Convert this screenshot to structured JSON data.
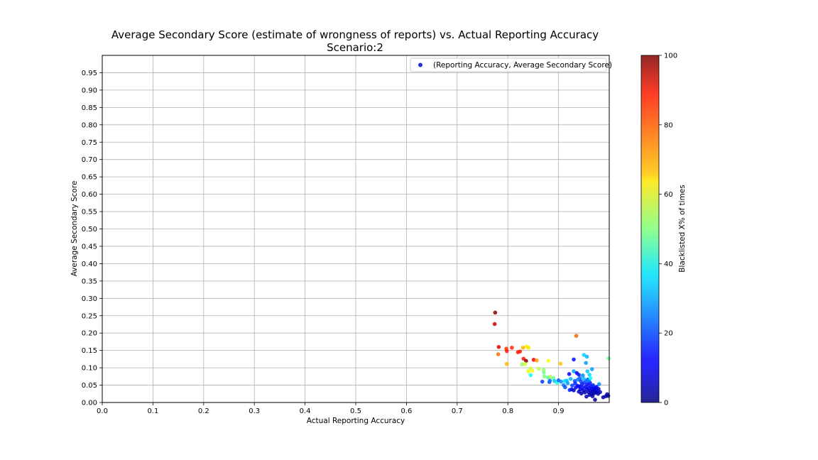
{
  "chart_data": {
    "type": "scatter",
    "title": "Average Secondary Score (estimate of wrongness of reports) vs. Actual Reporting Accuracy",
    "subtitle": "Scenario:2",
    "xlabel": "Actual Reporting Accuracy",
    "ylabel": "Average Secondary Score",
    "xlim": [
      0.0,
      1.0
    ],
    "ylim": [
      0.0,
      1.0
    ],
    "x_ticks": [
      "0.0",
      "0.1",
      "0.2",
      "0.3",
      "0.4",
      "0.5",
      "0.6",
      "0.7",
      "0.8",
      "0.9"
    ],
    "y_ticks": [
      "0.00",
      "0.05",
      "0.10",
      "0.15",
      "0.20",
      "0.25",
      "0.30",
      "0.35",
      "0.40",
      "0.45",
      "0.50",
      "0.55",
      "0.60",
      "0.65",
      "0.70",
      "0.75",
      "0.80",
      "0.85",
      "0.90",
      "0.95"
    ],
    "grid": true,
    "legend": {
      "entries": [
        "(Reporting Accuracy, Average Secondary Score)"
      ],
      "placement": "top-right"
    },
    "colorbar": {
      "label": "Blacklisted X% of times",
      "range": [
        0,
        100
      ],
      "ticks": [
        "0",
        "20",
        "40",
        "60",
        "80",
        "100"
      ],
      "colormap": "jet"
    },
    "points": [
      {
        "x": 0.775,
        "y": 0.259,
        "c": 100
      },
      {
        "x": 0.774,
        "y": 0.226,
        "c": 92
      },
      {
        "x": 0.782,
        "y": 0.16,
        "c": 90
      },
      {
        "x": 0.781,
        "y": 0.139,
        "c": 77
      },
      {
        "x": 0.797,
        "y": 0.155,
        "c": 82
      },
      {
        "x": 0.798,
        "y": 0.148,
        "c": 85
      },
      {
        "x": 0.808,
        "y": 0.158,
        "c": 84
      },
      {
        "x": 0.798,
        "y": 0.111,
        "c": 70
      },
      {
        "x": 0.82,
        "y": 0.145,
        "c": 86
      },
      {
        "x": 0.824,
        "y": 0.147,
        "c": 85
      },
      {
        "x": 0.83,
        "y": 0.158,
        "c": 70
      },
      {
        "x": 0.837,
        "y": 0.161,
        "c": 64
      },
      {
        "x": 0.841,
        "y": 0.158,
        "c": 65
      },
      {
        "x": 0.831,
        "y": 0.126,
        "c": 86
      },
      {
        "x": 0.836,
        "y": 0.12,
        "c": 100
      },
      {
        "x": 0.851,
        "y": 0.123,
        "c": 88
      },
      {
        "x": 0.857,
        "y": 0.121,
        "c": 72
      },
      {
        "x": 0.828,
        "y": 0.11,
        "c": 52
      },
      {
        "x": 0.834,
        "y": 0.111,
        "c": 58
      },
      {
        "x": 0.84,
        "y": 0.09,
        "c": 60
      },
      {
        "x": 0.845,
        "y": 0.098,
        "c": 58
      },
      {
        "x": 0.848,
        "y": 0.091,
        "c": 62
      },
      {
        "x": 0.845,
        "y": 0.079,
        "c": 38
      },
      {
        "x": 0.861,
        "y": 0.097,
        "c": 55
      },
      {
        "x": 0.871,
        "y": 0.094,
        "c": 52
      },
      {
        "x": 0.871,
        "y": 0.086,
        "c": 48
      },
      {
        "x": 0.88,
        "y": 0.12,
        "c": 62
      },
      {
        "x": 0.872,
        "y": 0.075,
        "c": 50
      },
      {
        "x": 0.879,
        "y": 0.072,
        "c": 45
      },
      {
        "x": 0.884,
        "y": 0.074,
        "c": 56
      },
      {
        "x": 0.89,
        "y": 0.07,
        "c": 46
      },
      {
        "x": 0.868,
        "y": 0.06,
        "c": 18
      },
      {
        "x": 0.882,
        "y": 0.059,
        "c": 20
      },
      {
        "x": 0.883,
        "y": 0.063,
        "c": 24
      },
      {
        "x": 0.892,
        "y": 0.062,
        "c": 32
      },
      {
        "x": 0.897,
        "y": 0.057,
        "c": 40
      },
      {
        "x": 0.9,
        "y": 0.064,
        "c": 22
      },
      {
        "x": 0.905,
        "y": 0.06,
        "c": 26
      },
      {
        "x": 0.904,
        "y": 0.112,
        "c": 68
      },
      {
        "x": 0.91,
        "y": 0.05,
        "c": 24
      },
      {
        "x": 0.913,
        "y": 0.044,
        "c": 20
      },
      {
        "x": 0.916,
        "y": 0.063,
        "c": 30
      },
      {
        "x": 0.921,
        "y": 0.082,
        "c": 12
      },
      {
        "x": 0.924,
        "y": 0.068,
        "c": 30
      },
      {
        "x": 0.93,
        "y": 0.124,
        "c": 14
      },
      {
        "x": 0.93,
        "y": 0.09,
        "c": 28
      },
      {
        "x": 0.935,
        "y": 0.192,
        "c": 78
      },
      {
        "x": 0.936,
        "y": 0.085,
        "c": 10
      },
      {
        "x": 0.94,
        "y": 0.08,
        "c": 14
      },
      {
        "x": 0.942,
        "y": 0.07,
        "c": 22
      },
      {
        "x": 0.95,
        "y": 0.137,
        "c": 33
      },
      {
        "x": 0.956,
        "y": 0.132,
        "c": 30
      },
      {
        "x": 0.954,
        "y": 0.114,
        "c": 28
      },
      {
        "x": 0.948,
        "y": 0.078,
        "c": 26
      },
      {
        "x": 0.957,
        "y": 0.09,
        "c": 32
      },
      {
        "x": 0.961,
        "y": 0.08,
        "c": 34
      },
      {
        "x": 0.966,
        "y": 0.096,
        "c": 28
      },
      {
        "x": 0.922,
        "y": 0.036,
        "c": 16
      },
      {
        "x": 0.926,
        "y": 0.038,
        "c": 12
      },
      {
        "x": 0.93,
        "y": 0.035,
        "c": 6
      },
      {
        "x": 0.934,
        "y": 0.043,
        "c": 10
      },
      {
        "x": 0.938,
        "y": 0.048,
        "c": 12
      },
      {
        "x": 0.94,
        "y": 0.031,
        "c": 8
      },
      {
        "x": 0.943,
        "y": 0.038,
        "c": 10
      },
      {
        "x": 0.945,
        "y": 0.026,
        "c": 4
      },
      {
        "x": 0.947,
        "y": 0.043,
        "c": 14
      },
      {
        "x": 0.949,
        "y": 0.035,
        "c": 6
      },
      {
        "x": 0.951,
        "y": 0.057,
        "c": 16
      },
      {
        "x": 0.952,
        "y": 0.029,
        "c": 4
      },
      {
        "x": 0.953,
        "y": 0.045,
        "c": 10
      },
      {
        "x": 0.955,
        "y": 0.017,
        "c": 5
      },
      {
        "x": 0.956,
        "y": 0.038,
        "c": 8
      },
      {
        "x": 0.957,
        "y": 0.052,
        "c": 12
      },
      {
        "x": 0.958,
        "y": 0.066,
        "c": 18
      },
      {
        "x": 0.959,
        "y": 0.03,
        "c": 6
      },
      {
        "x": 0.96,
        "y": 0.042,
        "c": 10
      },
      {
        "x": 0.961,
        "y": 0.022,
        "c": 4
      },
      {
        "x": 0.962,
        "y": 0.057,
        "c": 14
      },
      {
        "x": 0.963,
        "y": 0.034,
        "c": 6
      },
      {
        "x": 0.964,
        "y": 0.047,
        "c": 12
      },
      {
        "x": 0.965,
        "y": 0.025,
        "c": 4
      },
      {
        "x": 0.966,
        "y": 0.038,
        "c": 8
      },
      {
        "x": 0.967,
        "y": 0.018,
        "c": 3
      },
      {
        "x": 0.968,
        "y": 0.031,
        "c": 6
      },
      {
        "x": 0.969,
        "y": 0.043,
        "c": 10
      },
      {
        "x": 0.97,
        "y": 0.026,
        "c": 5
      },
      {
        "x": 0.971,
        "y": 0.036,
        "c": 8
      },
      {
        "x": 0.972,
        "y": 0.008,
        "c": 2
      },
      {
        "x": 0.973,
        "y": 0.041,
        "c": 10
      },
      {
        "x": 0.974,
        "y": 0.029,
        "c": 5
      },
      {
        "x": 0.976,
        "y": 0.034,
        "c": 7
      },
      {
        "x": 0.978,
        "y": 0.025,
        "c": 4
      },
      {
        "x": 0.979,
        "y": 0.039,
        "c": 8
      },
      {
        "x": 0.98,
        "y": 0.053,
        "c": 26
      },
      {
        "x": 0.982,
        "y": 0.03,
        "c": 6
      },
      {
        "x": 0.988,
        "y": 0.015,
        "c": 3
      },
      {
        "x": 0.993,
        "y": 0.018,
        "c": 4
      },
      {
        "x": 0.996,
        "y": 0.024,
        "c": 5
      },
      {
        "x": 0.998,
        "y": 0.019,
        "c": 3
      },
      {
        "x": 0.999,
        "y": 0.127,
        "c": 48
      },
      {
        "x": 0.932,
        "y": 0.062,
        "c": 20
      },
      {
        "x": 0.938,
        "y": 0.066,
        "c": 24
      },
      {
        "x": 0.944,
        "y": 0.061,
        "c": 18
      },
      {
        "x": 0.946,
        "y": 0.052,
        "c": 14
      },
      {
        "x": 0.95,
        "y": 0.068,
        "c": 30
      },
      {
        "x": 0.955,
        "y": 0.061,
        "c": 22
      },
      {
        "x": 0.96,
        "y": 0.064,
        "c": 26
      },
      {
        "x": 0.963,
        "y": 0.07,
        "c": 38
      },
      {
        "x": 0.918,
        "y": 0.056,
        "c": 28
      },
      {
        "x": 0.912,
        "y": 0.062,
        "c": 34
      },
      {
        "x": 0.927,
        "y": 0.049,
        "c": 18
      },
      {
        "x": 0.933,
        "y": 0.055,
        "c": 16
      },
      {
        "x": 0.941,
        "y": 0.046,
        "c": 12
      },
      {
        "x": 0.968,
        "y": 0.05,
        "c": 16
      },
      {
        "x": 0.975,
        "y": 0.045,
        "c": 12
      }
    ]
  }
}
